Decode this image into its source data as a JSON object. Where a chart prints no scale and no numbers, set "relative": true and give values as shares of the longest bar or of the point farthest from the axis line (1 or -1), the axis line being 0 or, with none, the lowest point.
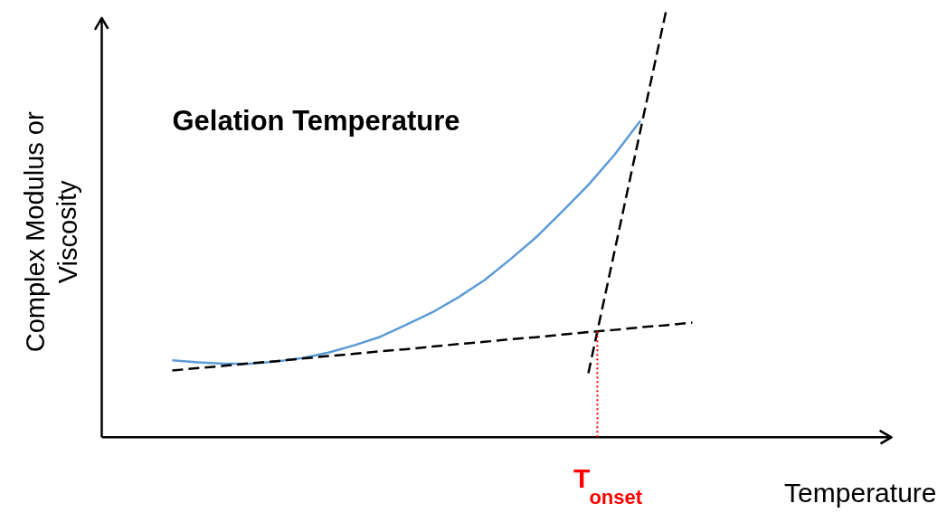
{
  "chart_data": {
    "type": "line",
    "relative": true,
    "title": "Gelation Temperature",
    "xlabel": "Temperature",
    "ylabel": "Complex Modulus or Viscosity",
    "categories": [
      null,
      null,
      null,
      null,
      null,
      null,
      null,
      null,
      null,
      null,
      null,
      null,
      null,
      null,
      null,
      null,
      null,
      null,
      null,
      null,
      null
    ],
    "series": [
      {
        "color": "#5b9bd5",
        "line_style": "solid",
        "values": [
          0.18,
          0.175,
          0.172,
          0.172,
          0.177,
          0.185,
          0.198,
          0.215,
          0.235,
          0.263,
          0.292,
          0.327,
          0.367,
          0.416,
          0.468,
          0.528,
          0.59,
          0.66,
          0.74,
          null,
          null
        ]
      },
      {
        "color": "#000000",
        "line_style": "dashed",
        "values": [
          0.156,
          0.162,
          0.167,
          0.173,
          0.178,
          0.184,
          0.19,
          0.195,
          0.201,
          0.206,
          0.212,
          0.218,
          0.223,
          0.229,
          0.234,
          0.24,
          0.246,
          0.251,
          0.257,
          0.262,
          0.268
        ]
      },
      {
        "color": "#000000",
        "line_style": "dashed",
        "values": [
          null,
          null,
          null,
          null,
          null,
          null,
          null,
          null,
          null,
          null,
          null,
          null,
          null,
          null,
          null,
          null,
          0.15,
          0.433,
          0.717,
          1.0,
          null
        ]
      }
    ],
    "annotations": [
      "T$_{onset}$"
    ],
    "grid": false
  }
}
